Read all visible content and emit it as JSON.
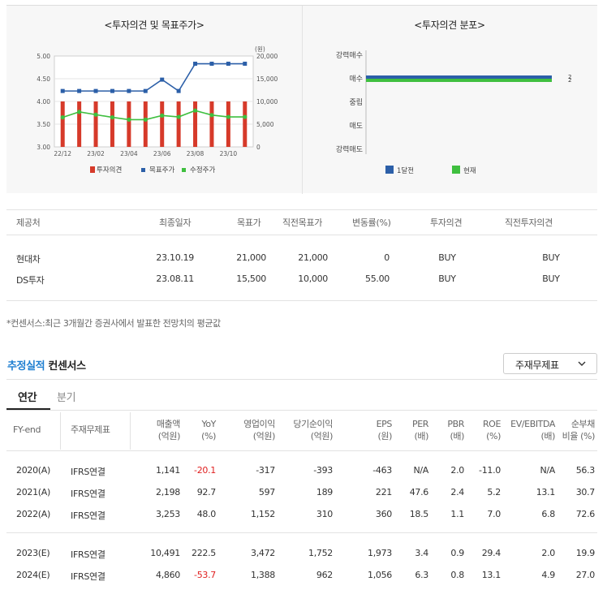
{
  "chart_data": [
    {
      "type": "bar+line",
      "title": "<투자의견 및 목표주가>",
      "categories": [
        "22/12",
        "23/01",
        "23/02",
        "23/03",
        "23/04",
        "23/05",
        "23/06",
        "23/07",
        "23/08",
        "23/09",
        "23/10",
        "23/11"
      ],
      "x_tick_labels": [
        "22/12",
        "23/02",
        "23/04",
        "23/06",
        "23/08",
        "23/10"
      ],
      "left_axis": {
        "ticks": [
          "5.00",
          "4.50",
          "4.00",
          "3.50",
          "3.00"
        ],
        "range": [
          3.0,
          5.0
        ]
      },
      "right_axis": {
        "unit": "(원)",
        "ticks": [
          "20,000",
          "15,000",
          "10,000",
          "5,000",
          "0"
        ],
        "range": [
          0,
          20000
        ]
      },
      "series": [
        {
          "name": "투자의견",
          "type": "bar",
          "color": "#d63a2a",
          "values": [
            4,
            4,
            4,
            4,
            4,
            4,
            4,
            4,
            4,
            4,
            4,
            4
          ]
        },
        {
          "name": "목표주가",
          "type": "line",
          "color": "#2c5fa8",
          "values": [
            12300,
            12300,
            12300,
            12300,
            12300,
            12300,
            14800,
            12300,
            18300,
            18300,
            18300,
            18300
          ]
        },
        {
          "name": "수정주가",
          "type": "line",
          "color": "#3fbf3f",
          "values": [
            6500,
            7700,
            7100,
            6500,
            6000,
            6000,
            6900,
            6600,
            8000,
            7000,
            6600,
            6600
          ]
        }
      ],
      "legend": [
        "투자의견",
        "목표주가",
        "수정주가"
      ]
    },
    {
      "type": "bar",
      "orientation": "horizontal",
      "title": "<투자의견 분포>",
      "categories": [
        "강력매수",
        "매수",
        "중립",
        "매도",
        "강력매도"
      ],
      "series": [
        {
          "name": "1달전",
          "color": "#2c5fa8",
          "values": [
            0,
            2,
            0,
            0,
            0
          ]
        },
        {
          "name": "현재",
          "color": "#3fbf3f",
          "values": [
            0,
            2,
            0,
            0,
            0
          ]
        }
      ],
      "value_labels": [
        "2",
        "2"
      ],
      "legend": [
        "1달전",
        "현재"
      ]
    }
  ],
  "consensus": {
    "headers": [
      "제공처",
      "최종일자",
      "목표가",
      "직전목표가",
      "변동률(%)",
      "투자의견",
      "직전투자의견"
    ],
    "rows": [
      [
        "현대차",
        "23.10.19",
        "21,000",
        "21,000",
        "0",
        "BUY",
        "BUY"
      ],
      [
        "DS투자",
        "23.08.11",
        "15,500",
        "10,000",
        "55.00",
        "BUY",
        "BUY"
      ]
    ]
  },
  "note": "*컨센서스:최근 3개월간 증권사에서 발표한 전망치의 평균값",
  "estimate": {
    "title_a": "추정실적",
    "title_b": "컨센서스",
    "dropdown_value": "주재무제표",
    "tabs": [
      "연간",
      "분기"
    ],
    "headers": [
      [
        "FY-end",
        ""
      ],
      [
        "주재무제표",
        ""
      ],
      [
        "매출액",
        "(억원)"
      ],
      [
        "YoY",
        "(%)"
      ],
      [
        "영업이익",
        "(억원)"
      ],
      [
        "당기순이익",
        "(억원)"
      ],
      [
        "EPS",
        "(원)"
      ],
      [
        "PER",
        "(배)"
      ],
      [
        "PBR",
        "(배)"
      ],
      [
        "ROE",
        "(%)"
      ],
      [
        "EV/EBITDA",
        "(배)"
      ],
      [
        "순부채",
        "비율 (%)"
      ]
    ],
    "rows": [
      [
        "2020(A)",
        "IFRS연결",
        "1,141",
        "-20.1",
        "-317",
        "-393",
        "-463",
        "N/A",
        "2.0",
        "-11.0",
        "N/A",
        "56.3"
      ],
      [
        "2021(A)",
        "IFRS연결",
        "2,198",
        "92.7",
        "597",
        "189",
        "221",
        "47.6",
        "2.4",
        "5.2",
        "13.1",
        "30.7"
      ],
      [
        "2022(A)",
        "IFRS연결",
        "3,253",
        "48.0",
        "1,152",
        "310",
        "360",
        "18.5",
        "1.1",
        "7.0",
        "6.8",
        "72.6"
      ],
      [
        "2023(E)",
        "IFRS연결",
        "10,491",
        "222.5",
        "3,472",
        "1,752",
        "1,973",
        "3.4",
        "0.9",
        "29.4",
        "2.0",
        "19.9"
      ],
      [
        "2024(E)",
        "IFRS연결",
        "4,860",
        "-53.7",
        "1,388",
        "962",
        "1,056",
        "6.3",
        "0.8",
        "13.1",
        "4.9",
        "27.0"
      ]
    ]
  }
}
